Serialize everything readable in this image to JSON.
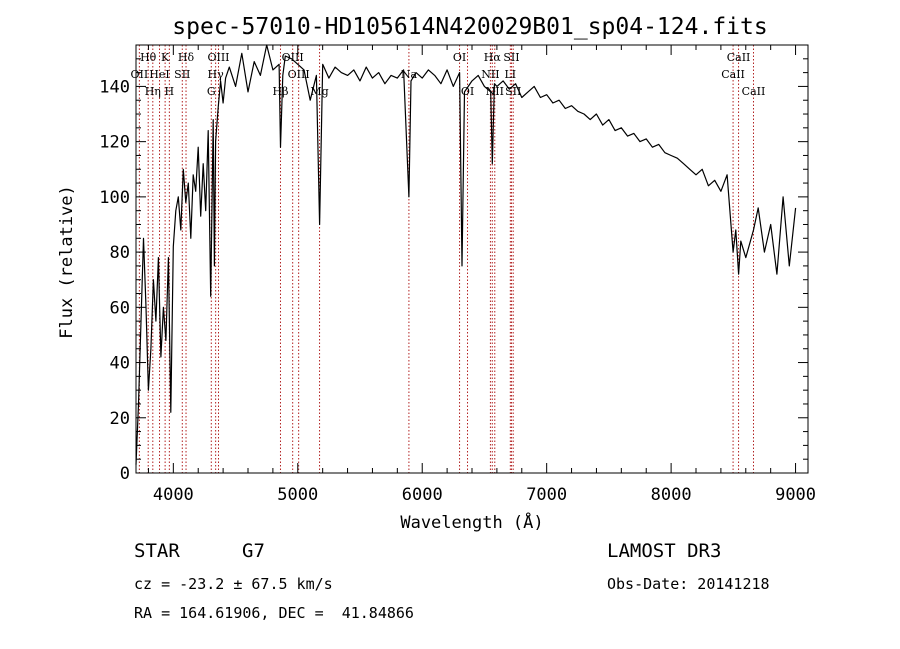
{
  "chart_data": {
    "type": "line",
    "title": "spec-57010-HD105614N420029B01_sp04-124.fits",
    "xlabel": "Wavelength (Å)",
    "ylabel": "Flux (relative)",
    "xlim": [
      3700,
      9100
    ],
    "ylim": [
      0,
      155
    ],
    "xticks": [
      4000,
      5000,
      6000,
      7000,
      8000,
      9000
    ],
    "yticks": [
      0,
      20,
      40,
      60,
      80,
      100,
      120,
      140
    ],
    "series": [
      {
        "name": "flux",
        "x": [
          3700,
          3720,
          3740,
          3760,
          3780,
          3800,
          3820,
          3840,
          3860,
          3880,
          3900,
          3920,
          3940,
          3960,
          3980,
          4000,
          4020,
          4040,
          4060,
          4080,
          4100,
          4120,
          4140,
          4160,
          4180,
          4200,
          4220,
          4240,
          4260,
          4280,
          4300,
          4320,
          4330,
          4340,
          4360,
          4380,
          4400,
          4420,
          4450,
          4500,
          4550,
          4600,
          4650,
          4700,
          4750,
          4800,
          4850,
          4861,
          4880,
          4900,
          4950,
          5000,
          5050,
          5100,
          5150,
          5175,
          5200,
          5250,
          5300,
          5350,
          5400,
          5450,
          5500,
          5550,
          5600,
          5650,
          5700,
          5750,
          5800,
          5850,
          5893,
          5910,
          5950,
          6000,
          6050,
          6100,
          6150,
          6200,
          6250,
          6300,
          6320,
          6340,
          6400,
          6450,
          6500,
          6550,
          6563,
          6580,
          6600,
          6650,
          6700,
          6750,
          6800,
          6850,
          6900,
          6950,
          7000,
          7050,
          7100,
          7150,
          7200,
          7250,
          7300,
          7350,
          7400,
          7450,
          7500,
          7550,
          7600,
          7650,
          7700,
          7750,
          7800,
          7850,
          7900,
          7950,
          8000,
          8050,
          8100,
          8150,
          8200,
          8250,
          8300,
          8350,
          8400,
          8450,
          8498,
          8520,
          8542,
          8560,
          8600,
          8662,
          8700,
          8750,
          8800,
          8850,
          8900,
          8950,
          9000
        ],
        "y": [
          3,
          25,
          55,
          85,
          60,
          30,
          45,
          70,
          55,
          78,
          42,
          60,
          48,
          78,
          22,
          82,
          95,
          100,
          88,
          110,
          98,
          105,
          85,
          108,
          102,
          118,
          93,
          112,
          95,
          124,
          64,
          128,
          75,
          120,
          132,
          142,
          134,
          143,
          147,
          140,
          152,
          138,
          149,
          144,
          156,
          146,
          148,
          118,
          144,
          151,
          150,
          148,
          146,
          135,
          144,
          90,
          148,
          143,
          147,
          145,
          144,
          146,
          142,
          147,
          143,
          145,
          141,
          144,
          143,
          146,
          100,
          142,
          145,
          143,
          146,
          144,
          141,
          146,
          140,
          145,
          75,
          138,
          142,
          144,
          140,
          138,
          112,
          141,
          140,
          142,
          139,
          141,
          136,
          138,
          140,
          136,
          137,
          134,
          135,
          132,
          133,
          131,
          130,
          128,
          130,
          126,
          128,
          124,
          125,
          122,
          123,
          120,
          121,
          118,
          119,
          116,
          115,
          114,
          112,
          110,
          108,
          110,
          104,
          106,
          102,
          108,
          80,
          88,
          72,
          84,
          78,
          88,
          96,
          80,
          90,
          72,
          100,
          75,
          96
        ]
      }
    ],
    "line_ids": [
      {
        "label": "Hθ",
        "wave": 3798,
        "row": 0
      },
      {
        "label": "OII",
        "wave": 3727,
        "row": 1
      },
      {
        "label": "Hη",
        "wave": 3835,
        "row": 2
      },
      {
        "label": "K",
        "wave": 3934,
        "row": 0
      },
      {
        "label": "HeI",
        "wave": 3889,
        "row": 1
      },
      {
        "label": "H",
        "wave": 3968,
        "row": 2
      },
      {
        "label": "Hδ",
        "wave": 4102,
        "row": 0
      },
      {
        "label": "SII",
        "wave": 4072,
        "row": 1
      },
      {
        "label": "OIII",
        "wave": 4363,
        "row": 0
      },
      {
        "label": "Hγ",
        "wave": 4340,
        "row": 1
      },
      {
        "label": "G",
        "wave": 4305,
        "row": 2
      },
      {
        "label": "Hβ",
        "wave": 4861,
        "row": 2
      },
      {
        "label": "OIII",
        "wave": 4959,
        "row": 0
      },
      {
        "label": "OIII",
        "wave": 5007,
        "row": 1
      },
      {
        "label": "Mg",
        "wave": 5175,
        "row": 2
      },
      {
        "label": "Na",
        "wave": 5893,
        "row": 1
      },
      {
        "label": "OI",
        "wave": 6300,
        "row": 0
      },
      {
        "label": "OI",
        "wave": 6364,
        "row": 2
      },
      {
        "label": "Hα",
        "wave": 6563,
        "row": 0
      },
      {
        "label": "NII",
        "wave": 6548,
        "row": 1
      },
      {
        "label": "NII",
        "wave": 6583,
        "row": 2
      },
      {
        "label": "SII",
        "wave": 6717,
        "row": 0
      },
      {
        "label": "LI",
        "wave": 6708,
        "row": 1
      },
      {
        "label": "SII",
        "wave": 6731,
        "row": 2
      },
      {
        "label": "CaII",
        "wave": 8542,
        "row": 0
      },
      {
        "label": "CaII",
        "wave": 8498,
        "row": 1
      },
      {
        "label": "CaII",
        "wave": 8662,
        "row": 2
      }
    ],
    "line_color": "#000000",
    "marker_color": "#b22222"
  },
  "info": {
    "object_class": "STAR",
    "subclass": "G7",
    "redshift": "cz = -23.2 ± 67.5 km/s",
    "coords": "RA = 164.61906, DEC =  41.84866",
    "survey": "LAMOST DR3",
    "obs_date": "Obs-Date: 20141218"
  }
}
